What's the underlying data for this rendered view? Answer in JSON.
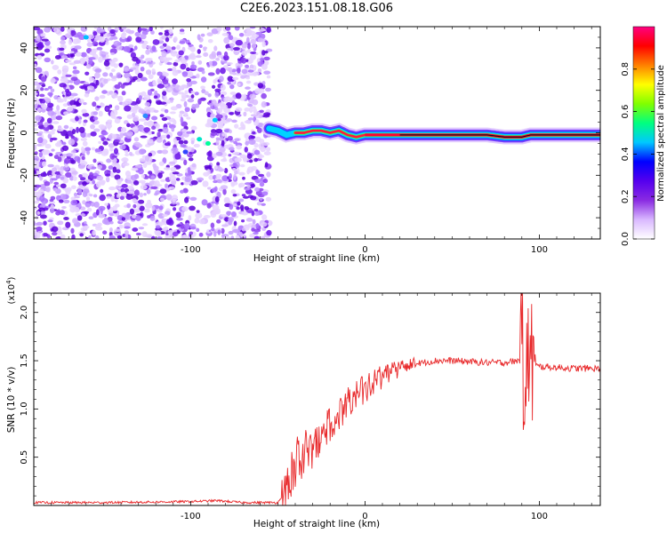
{
  "title": "C2E6.2023.151.08.18.G06",
  "chart_data": [
    {
      "type": "heatmap",
      "xlabel": "Height of straight line (km)",
      "ylabel": "Frequency (Hz)",
      "xlim": [
        -190,
        135
      ],
      "ylim": [
        -50,
        50
      ],
      "xticks": [
        -100,
        0,
        100
      ],
      "yticks": [
        -40,
        -20,
        0,
        20,
        40
      ],
      "grid": false,
      "colorbar": {
        "label": "Normalized spectral amplitude",
        "range": [
          0,
          1
        ],
        "ticks": [
          "0.0",
          "0.2",
          "0.4",
          "0.6",
          "0.8"
        ],
        "colormap": [
          "#ffffff",
          "#d9b8ff",
          "#8a2be2",
          "#5500ee",
          "#0000ff",
          "#00c8ff",
          "#00ff80",
          "#80ff00",
          "#ffff00",
          "#ff8000",
          "#ff0000",
          "#ff0080"
        ]
      },
      "features": [
        {
          "name": "noise",
          "x_range": [
            -190,
            -55
          ],
          "y_range": [
            -50,
            50
          ],
          "amplitude": 0.15
        },
        {
          "name": "trace",
          "x_range": [
            -55,
            135
          ],
          "amplitude": 0.95,
          "freq": [
            [
              -55,
              2
            ],
            [
              -50,
              1
            ],
            [
              -45,
              -1
            ],
            [
              -40,
              0
            ],
            [
              -35,
              0
            ],
            [
              -30,
              1
            ],
            [
              -25,
              1
            ],
            [
              -20,
              0
            ],
            [
              -15,
              1
            ],
            [
              -10,
              -1
            ],
            [
              -5,
              -2
            ],
            [
              0,
              -1
            ],
            [
              10,
              -1
            ],
            [
              20,
              -1
            ],
            [
              40,
              -1
            ],
            [
              60,
              -1
            ],
            [
              70,
              -1
            ],
            [
              80,
              -2
            ],
            [
              85,
              -2
            ],
            [
              90,
              -2
            ],
            [
              95,
              -1
            ],
            [
              100,
              -1
            ],
            [
              135,
              -1
            ]
          ]
        }
      ]
    },
    {
      "type": "line",
      "xlabel": "Height of straight line (km)",
      "ylabel": "SNR (10 * v/v)",
      "y_multiplier": "(x10^4)",
      "xlim": [
        -190,
        135
      ],
      "ylim": [
        0,
        2.2
      ],
      "xticks": [
        -100,
        0,
        100
      ],
      "yticks": [
        "0.5",
        "1.0",
        "1.5",
        "2.0"
      ],
      "color": "#e8282a",
      "grid": false,
      "series": [
        {
          "values": [
            [
              -190,
              0.03
            ],
            [
              -150,
              0.03
            ],
            [
              -100,
              0.04
            ],
            [
              -85,
              0.05
            ],
            [
              -70,
              0.03
            ],
            [
              -50,
              0.03
            ],
            [
              -45,
              0.15
            ],
            [
              -40,
              0.45
            ],
            [
              -35,
              0.55
            ],
            [
              -30,
              0.55
            ],
            [
              -25,
              0.7
            ],
            [
              -20,
              0.85
            ],
            [
              -15,
              0.95
            ],
            [
              -10,
              1.05
            ],
            [
              -5,
              1.15
            ],
            [
              0,
              1.2
            ],
            [
              5,
              1.28
            ],
            [
              10,
              1.33
            ],
            [
              15,
              1.38
            ],
            [
              20,
              1.42
            ],
            [
              25,
              1.45
            ],
            [
              30,
              1.47
            ],
            [
              40,
              1.5
            ],
            [
              50,
              1.5
            ],
            [
              60,
              1.49
            ],
            [
              70,
              1.48
            ],
            [
              80,
              1.48
            ],
            [
              88,
              1.5
            ],
            [
              92,
              1.5
            ],
            [
              96,
              1.45
            ],
            [
              100,
              1.44
            ],
            [
              110,
              1.43
            ],
            [
              120,
              1.42
            ],
            [
              135,
              1.42
            ]
          ]
        }
      ]
    }
  ]
}
